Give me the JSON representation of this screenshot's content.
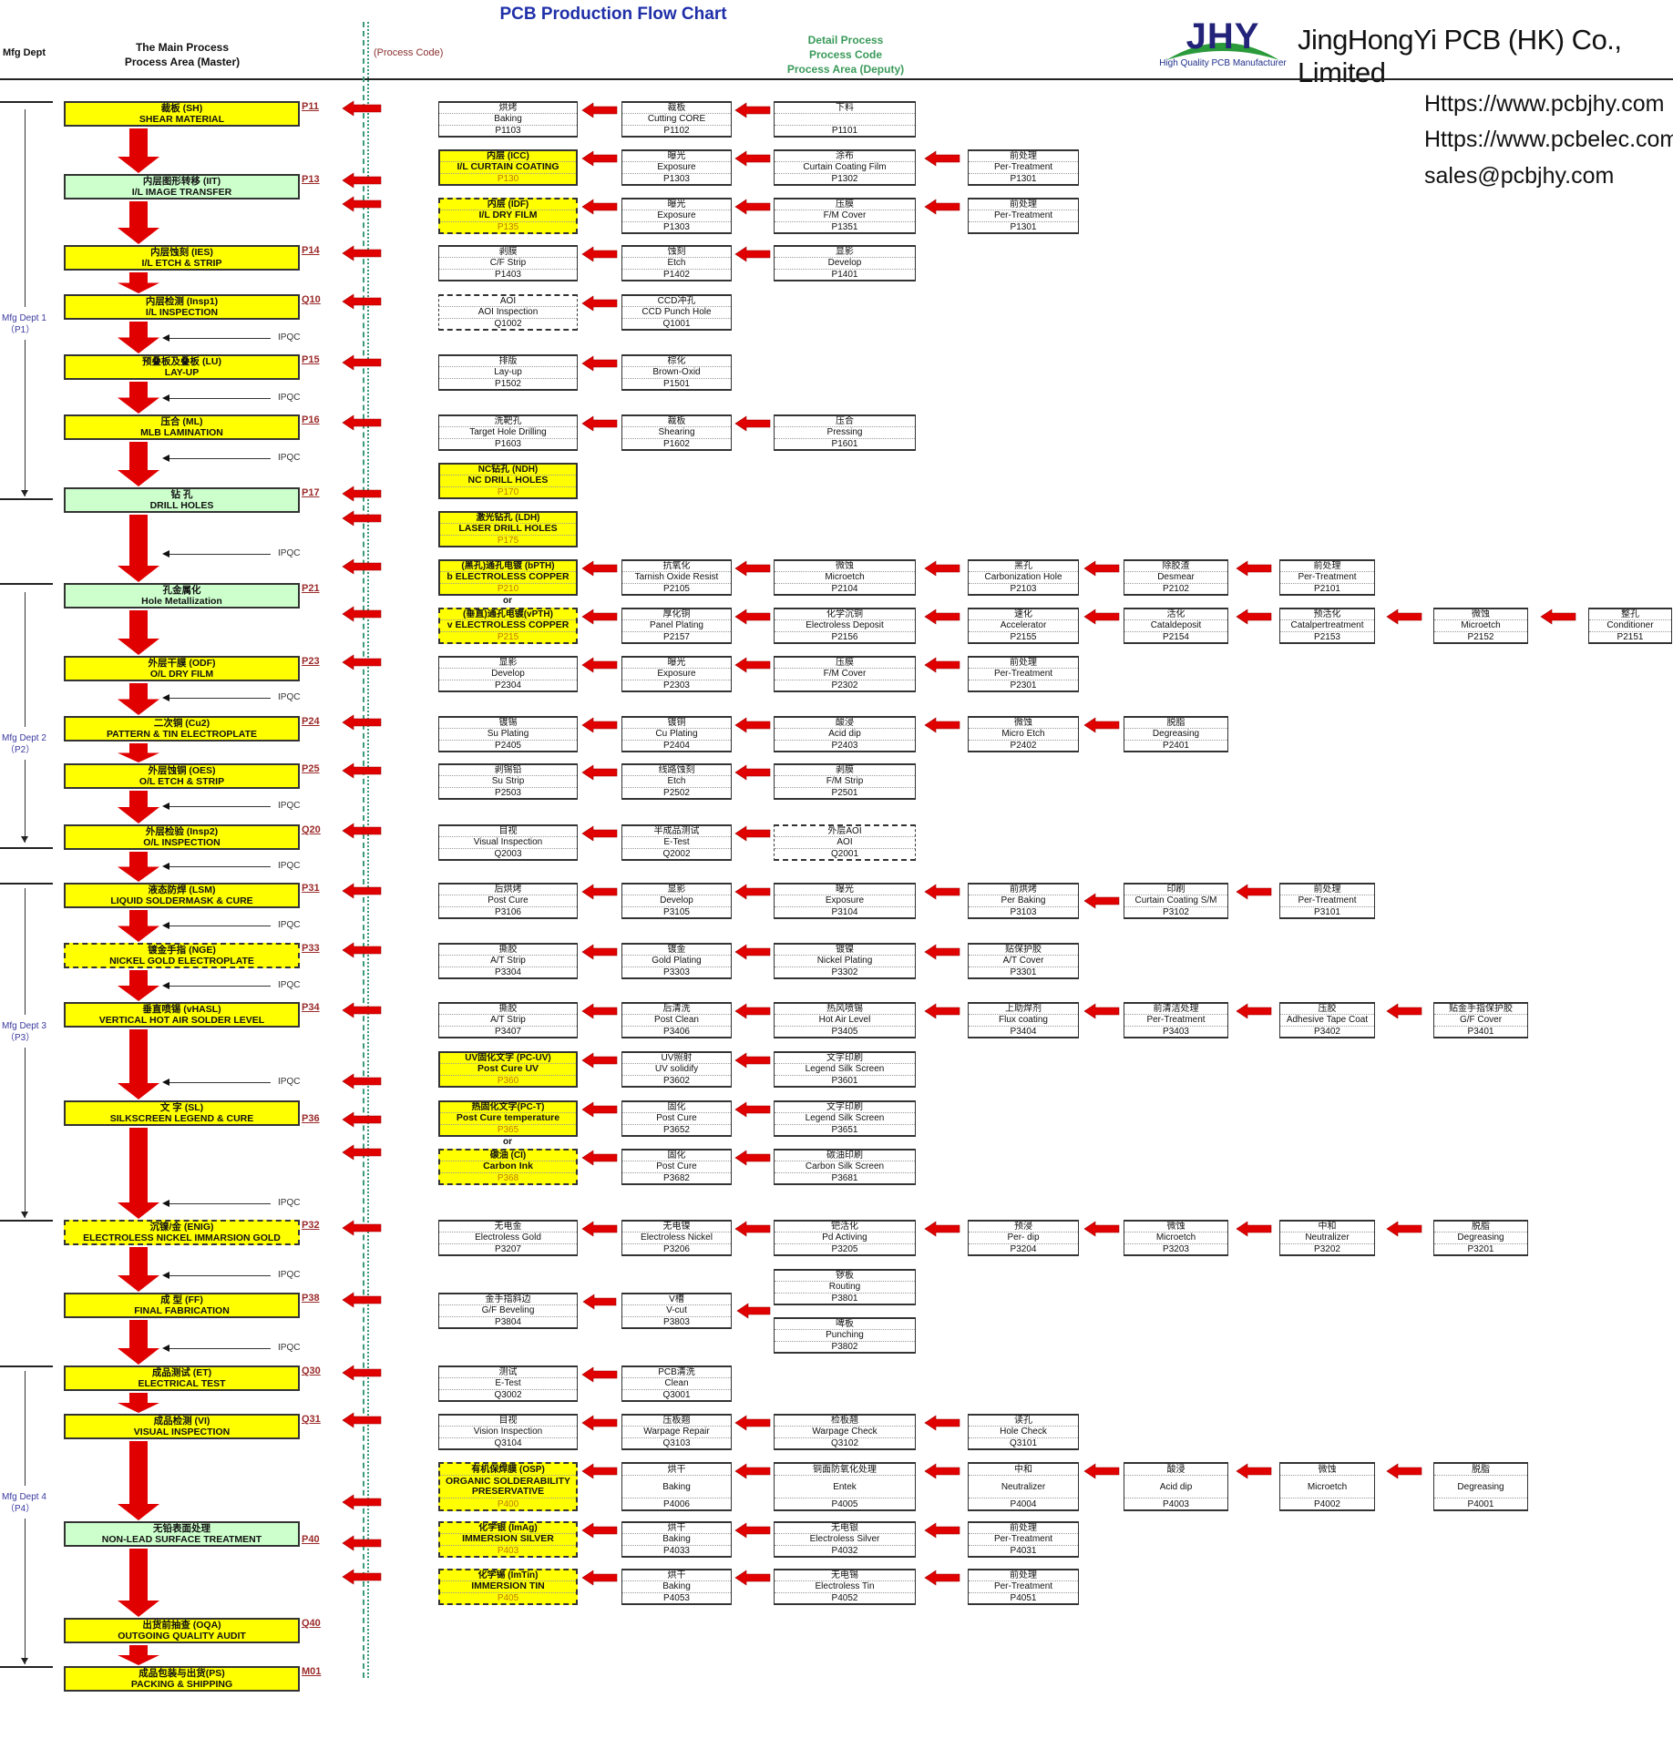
{
  "header": {
    "title": "PCB Production Flow Chart",
    "mfg_dept": "Mfg Dept",
    "main_process_line1": "The Main Process",
    "main_process_line2": "Process Area (Master)",
    "process_code": "(Process Code)",
    "detail_line1": "Detail Process",
    "detail_line2": "Process Code",
    "detail_line3": "Process Area (Deputy)"
  },
  "brand": {
    "logo_text": "JHY",
    "logo_caption": "High Quality PCB Manufacturer",
    "company": "JingHongYi PCB (HK) Co., Limited",
    "links": [
      "Https://www.pcbjhy.com",
      "Https://www.pcbelec.com",
      "sales@pcbjhy.com"
    ],
    "colors": {
      "logo_blue": "#23237a",
      "logo_green": "#2a9a3a",
      "arrow_red": "#e00000",
      "highlight_yellow": "#ffff00",
      "highlight_green": "#ccffcc"
    }
  },
  "depts": [
    {
      "name": "Mfg Dept 1",
      "code": "（P1）"
    },
    {
      "name": "Mfg Dept 2",
      "code": "（P2）"
    },
    {
      "name": "Mfg Dept 3",
      "code": "（P3）"
    },
    {
      "name": "Mfg Dept 4",
      "code": "（P4）"
    }
  ],
  "ipqc_label": "IPQC",
  "or_label": "or",
  "main_steps": [
    {
      "cn": "裁板 (SH)",
      "en": "SHEAR MATERIAL",
      "code": "P11",
      "fill": "yellow"
    },
    {
      "cn": "内层图形转移 (IIT)",
      "en": "I/L IMAGE TRANSFER",
      "code": "P13",
      "fill": "green"
    },
    {
      "cn": "内层蚀刻 (IES)",
      "en": "I/L ETCH & STRIP",
      "code": "P14",
      "fill": "yellow"
    },
    {
      "cn": "内层检测 (Insp1)",
      "en": "I/L INSPECTION",
      "code": "Q10",
      "fill": "yellow"
    },
    {
      "cn": "预叠板及叠板 (LU)",
      "en": "LAY-UP",
      "code": "P15",
      "fill": "yellow"
    },
    {
      "cn": "压合 (ML)",
      "en": "MLB LAMINATION",
      "code": "P16",
      "fill": "yellow"
    },
    {
      "cn": "钻 孔",
      "en": "DRILL  HOLES",
      "code": "P17",
      "fill": "green"
    },
    {
      "cn": "孔金属化",
      "en": "Hole Metallization",
      "code": "P21",
      "fill": "green"
    },
    {
      "cn": "外层干膜 (ODF)",
      "en": "O/L DRY FILM",
      "code": "P23",
      "fill": "yellow"
    },
    {
      "cn": "二次铜 (Cu2)",
      "en": "PATTERN & TIN ELECTROPLATE",
      "code": "P24",
      "fill": "yellow"
    },
    {
      "cn": "外层蚀铜 (OES)",
      "en": "O/L ETCH & STRIP",
      "code": "P25",
      "fill": "yellow"
    },
    {
      "cn": "外层检验 (Insp2)",
      "en": "O/L INSPECTION",
      "code": "Q20",
      "fill": "yellow"
    },
    {
      "cn": "液态防焊 (LSM)",
      "en": "LIQUID SOLDERMASK & CURE",
      "code": "P31",
      "fill": "yellow"
    },
    {
      "cn": "镀金手指 (NGE)",
      "en": "NICKEL GOLD ELECTROPLATE",
      "code": "P33",
      "fill": "yellow",
      "border": "dashed"
    },
    {
      "cn": "垂直喷锡 (vHASL)",
      "en": "VERTICAL HOT AIR SOLDER LEVEL",
      "code": "P34",
      "fill": "yellow"
    },
    {
      "cn": "文 字 (SL)",
      "en": "SILKSCREEN  LEGEND & CURE",
      "code": "P36",
      "fill": "yellow"
    },
    {
      "cn": "沉镍/金 (ENIG)",
      "en": "ELECTROLESS NICKEL IMMARSION GOLD",
      "code": "P32",
      "fill": "yellow",
      "border": "dashed"
    },
    {
      "cn": "成 型 (FF)",
      "en": "FINAL FABRICATION",
      "code": "P38",
      "fill": "yellow"
    },
    {
      "cn": "成品测试 (ET)",
      "en": "ELECTRICAL TEST",
      "code": "Q30",
      "fill": "yellow"
    },
    {
      "cn": "成品检测 (VI)",
      "en": "VISUAL INSPECTION",
      "code": "Q31",
      "fill": "yellow"
    },
    {
      "cn": "无铅表面处理",
      "en": "NON-LEAD SURFACE TREATMENT",
      "code": "P40",
      "fill": "green"
    },
    {
      "cn": "出货前抽查 (OQA)",
      "en": "OUTGOING QUALITY AUDIT",
      "code": "Q40",
      "fill": "yellow"
    },
    {
      "cn": "成品包装与出货(PS)",
      "en": "PACKING & SHIPPING",
      "code": "M01",
      "fill": "yellow"
    }
  ],
  "detail_rows": [
    [
      {
        "cn": "烘烤",
        "en": "Baking",
        "code": "P1103"
      },
      {
        "cn": "裁板",
        "en": "Cutting  CORE",
        "code": "P1102"
      },
      {
        "cn": "下料",
        "en": "",
        "code": "P1101"
      }
    ],
    [
      {
        "cn": "内层 (ICC)",
        "en": "I/L CURTAIN COATING",
        "code": "P130",
        "highlight": true
      },
      {
        "cn": "曝光",
        "en": "Exposure",
        "code": "P1303"
      },
      {
        "cn": "涂布",
        "en": "Curtain Coating Film",
        "code": "P1302"
      },
      {
        "cn": "前处理",
        "en": "Per-Treatment",
        "code": "P1301"
      }
    ],
    [
      {
        "cn": "内层 (IDF)",
        "en": "I/L DRY FILM",
        "code": "P135",
        "highlight": true,
        "border": "dashed"
      },
      {
        "cn": "曝光",
        "en": "Exposure",
        "code": "P1303"
      },
      {
        "cn": "压膜",
        "en": "F/M Cover",
        "code": "P1351"
      },
      {
        "cn": "前处理",
        "en": "Per-Treatment",
        "code": "P1301"
      }
    ],
    [
      {
        "cn": "剥膜",
        "en": "C/F Strip",
        "code": "P1403"
      },
      {
        "cn": "蚀刻",
        "en": "Etch",
        "code": "P1402"
      },
      {
        "cn": "显影",
        "en": "Develop",
        "code": "P1401"
      }
    ],
    [
      {
        "cn": "AOI",
        "en": "AOI Inspection",
        "code": "Q1002",
        "border": "dashed"
      },
      {
        "cn": "CCD冲孔",
        "en": "CCD Punch Hole",
        "code": "Q1001"
      }
    ],
    [
      {
        "cn": "排版",
        "en": "Lay-up",
        "code": "P1502"
      },
      {
        "cn": "棕化",
        "en": "Brown-Oxid",
        "code": "P1501"
      }
    ],
    [
      {
        "cn": "洗靶孔",
        "en": "Target Hole Drilling",
        "code": "P1603"
      },
      {
        "cn": "裁板",
        "en": "Shearing",
        "code": "P1602"
      },
      {
        "cn": "压合",
        "en": "Pressing",
        "code": "P1601"
      }
    ],
    [
      {
        "cn": "NC钻孔 (NDH)",
        "en": "NC DRILL HOLES",
        "code": "P170",
        "highlight": true
      }
    ],
    [
      {
        "cn": "激光钻孔 (LDH)",
        "en": "LASER DRILL HOLES",
        "code": "P175",
        "highlight": true
      }
    ],
    [
      {
        "cn": "(黑孔)通孔电镀 (bPTH)",
        "en": "b ELECTROLESS COPPER",
        "code": "P210",
        "highlight": true
      },
      {
        "cn": "抗氧化",
        "en": "Tarnish  Oxide Resist",
        "code": "P2105"
      },
      {
        "cn": "微蚀",
        "en": "Microetch",
        "code": "P2104"
      },
      {
        "cn": "黑孔",
        "en": "Carbonization Hole",
        "code": "P2103"
      },
      {
        "cn": "除胶渣",
        "en": "Desmear",
        "code": "P2102"
      },
      {
        "cn": "前处理",
        "en": "Per-Treatment",
        "code": "P2101"
      }
    ],
    [
      {
        "cn": "(垂直)通孔电镀(vPTH)",
        "en": "v ELECTROLESS COPPER",
        "code": "P215",
        "highlight": true,
        "border": "dashed"
      },
      {
        "cn": "厚化铜",
        "en": "Panel Plating",
        "code": "P2157"
      },
      {
        "cn": "化学沉铜",
        "en": "Electroless Deposit",
        "code": "P2156"
      },
      {
        "cn": "速化",
        "en": "Accelerator",
        "code": "P2155"
      },
      {
        "cn": "活化",
        "en": "Cataldeposit",
        "code": "P2154"
      },
      {
        "cn": "预活化",
        "en": "Catalpertreatment",
        "code": "P2153"
      },
      {
        "cn": "微蚀",
        "en": "Microetch",
        "code": "P2152"
      },
      {
        "cn": "整孔",
        "en": "Conditioner",
        "code": "P2151"
      }
    ],
    [
      {
        "cn": "显影",
        "en": "Develop",
        "code": "P2304"
      },
      {
        "cn": "曝光",
        "en": "Exposure",
        "code": "P2303"
      },
      {
        "cn": "压膜",
        "en": "F/M Cover",
        "code": "P2302"
      },
      {
        "cn": "前处理",
        "en": "Per-Treatment",
        "code": "P2301"
      }
    ],
    [
      {
        "cn": "镀锡",
        "en": "Su Plating",
        "code": "P2405"
      },
      {
        "cn": "镀铜",
        "en": "Cu Plating",
        "code": "P2404"
      },
      {
        "cn": "酸浸",
        "en": "Acid dip",
        "code": "P2403"
      },
      {
        "cn": "微蚀",
        "en": "Micro Etch",
        "code": "P2402"
      },
      {
        "cn": "脱脂",
        "en": "Degreasing",
        "code": "P2401"
      }
    ],
    [
      {
        "cn": "剥锡铅",
        "en": "Su Strip",
        "code": "P2503"
      },
      {
        "cn": "线路蚀刻",
        "en": "Etch",
        "code": "P2502"
      },
      {
        "cn": "剥膜",
        "en": "F/M Strip",
        "code": "P2501"
      }
    ],
    [
      {
        "cn": "目视",
        "en": "Visual Inspection",
        "code": "Q2003"
      },
      {
        "cn": "半成品测试",
        "en": "E-Test",
        "code": "Q2002"
      },
      {
        "cn": "外层AOI",
        "en": "AOI",
        "code": "Q2001",
        "border": "dashed"
      }
    ],
    [
      {
        "cn": "后烘烤",
        "en": "Post Cure",
        "code": "P3106"
      },
      {
        "cn": "显影",
        "en": "Develop",
        "code": "P3105"
      },
      {
        "cn": "曝光",
        "en": "Exposure",
        "code": "P3104"
      },
      {
        "cn": "前烘烤",
        "en": "Per Baking",
        "code": "P3103"
      },
      {
        "cn": "印刷",
        "en": "Curtain Coating S/M",
        "code": "P3102"
      },
      {
        "cn": "前处理",
        "en": "Per-Treatment",
        "code": "P3101"
      }
    ],
    [
      {
        "cn": "撕胶",
        "en": "A/T  Strip",
        "code": "P3304"
      },
      {
        "cn": "镀金",
        "en": "Gold Plating",
        "code": "P3303"
      },
      {
        "cn": "镀镍",
        "en": "Nickel Plating",
        "code": "P3302"
      },
      {
        "cn": "贴保护胶",
        "en": "A/T Cover",
        "code": "P3301"
      }
    ],
    [
      {
        "cn": "撕胶",
        "en": "A/T  Strip",
        "code": "P3407"
      },
      {
        "cn": "后清洗",
        "en": "Post Clean",
        "code": "P3406"
      },
      {
        "cn": "热风喷锡",
        "en": "Hot Air Level",
        "code": "P3405"
      },
      {
        "cn": "上助焊剂",
        "en": "Flux coating",
        "code": "P3404"
      },
      {
        "cn": "前清洁处理",
        "en": "Per-Treatment",
        "code": "P3403"
      },
      {
        "cn": "压胶",
        "en": "Adhesive Tape Coat",
        "code": "P3402"
      },
      {
        "cn": "贴金手指保护胶",
        "en": "G/F Cover",
        "code": "P3401"
      }
    ],
    [
      {
        "cn": "UV固化文字 (PC-UV)",
        "en": "Post Cure UV",
        "code": "P360",
        "highlight": true
      },
      {
        "cn": "UV照射",
        "en": "UV  solidify",
        "code": "P3602"
      },
      {
        "cn": "文字印刷",
        "en": "Legend Silk Screen",
        "code": "P3601"
      }
    ],
    [
      {
        "cn": "热固化文字(PC-T)",
        "en": "Post Cure temperature",
        "code": "P365",
        "highlight": true
      },
      {
        "cn": "固化",
        "en": "Post Cure",
        "code": "P3652"
      },
      {
        "cn": "文字印刷",
        "en": "Legend Silk Screen",
        "code": "P3651"
      }
    ],
    [
      {
        "cn": "碳油 (CI)",
        "en": "Carbon Ink",
        "code": "P368",
        "highlight": true,
        "border": "dashed"
      },
      {
        "cn": "固化",
        "en": "Post Cure",
        "code": "P3682"
      },
      {
        "cn": "碳油印刷",
        "en": "Carbon Silk Screen",
        "code": "P3681"
      }
    ],
    [
      {
        "cn": "无电金",
        "en": "Electroless Gold",
        "code": "P3207"
      },
      {
        "cn": "无电镍",
        "en": "Electroless Nickel",
        "code": "P3206"
      },
      {
        "cn": "钯活化",
        "en": "Pd Activing",
        "code": "P3205"
      },
      {
        "cn": "预浸",
        "en": "Per- dip",
        "code": "P3204"
      },
      {
        "cn": "微蚀",
        "en": "Microetch",
        "code": "P3203"
      },
      {
        "cn": "中和",
        "en": "Neutralizer",
        "code": "P3202"
      },
      {
        "cn": "脱脂",
        "en": "Degreasing",
        "code": "P3201"
      }
    ],
    [
      {
        "cn": "金手指斜边",
        "en": "G/F Beveling",
        "code": "P3804"
      },
      {
        "cn": "V槽",
        "en": "V-cut",
        "code": "P3803"
      },
      {
        "cn": "锣板",
        "en": "Routing",
        "code": "P3801"
      },
      {
        "cn": "啤板",
        "en": "Punching",
        "code": "P3802"
      }
    ],
    [
      {
        "cn": "测试",
        "en": "E-Test",
        "code": "Q3002"
      },
      {
        "cn": "PCB清洗",
        "en": "Clean",
        "code": "Q3001"
      }
    ],
    [
      {
        "cn": "目视",
        "en": "Vision Inspection",
        "code": "Q3104"
      },
      {
        "cn": "压板翘",
        "en": "Warpage  Repair",
        "code": "Q3103"
      },
      {
        "cn": "检板翘",
        "en": "Warpage  Check",
        "code": "Q3102"
      },
      {
        "cn": "读孔",
        "en": "Hole Check",
        "code": "Q3101"
      }
    ],
    [
      {
        "cn": "有机保焊膜 (OSP)",
        "en": "ORGANIC SOLDERABILITY PRESERVATIVE",
        "code": "P400",
        "highlight": true,
        "border": "dashed"
      },
      {
        "cn": "烘干",
        "en": "Baking",
        "code": "P4006"
      },
      {
        "cn": "铜面防氧化处理",
        "en": "Entek",
        "code": "P4005"
      },
      {
        "cn": "中和",
        "en": "Neutralizer",
        "code": "P4004"
      },
      {
        "cn": "酸浸",
        "en": "Acid dip",
        "code": "P4003"
      },
      {
        "cn": "微蚀",
        "en": "Microetch",
        "code": "P4002"
      },
      {
        "cn": "脱脂",
        "en": "Degreasing",
        "code": "P4001"
      }
    ],
    [
      {
        "cn": "化学银 (ImAg)",
        "en": "IMMERSION SILVER",
        "code": "P403",
        "highlight": true,
        "border": "dashed"
      },
      {
        "cn": "烘干",
        "en": "Baking",
        "code": "P4033"
      },
      {
        "cn": "无电银",
        "en": "Electroless Silver",
        "code": "P4032"
      },
      {
        "cn": "前处理",
        "en": "Per-Treatment",
        "code": "P4031"
      }
    ],
    [
      {
        "cn": "化学锡 (ImTin)",
        "en": "IMMERSION TIN",
        "code": "P405",
        "highlight": true,
        "border": "dashed"
      },
      {
        "cn": "烘干",
        "en": "Baking",
        "code": "P4053"
      },
      {
        "cn": "无电锡",
        "en": "Electroless Tin",
        "code": "P4052"
      },
      {
        "cn": "前处理",
        "en": "Per-Treatment",
        "code": "P4051"
      }
    ]
  ]
}
